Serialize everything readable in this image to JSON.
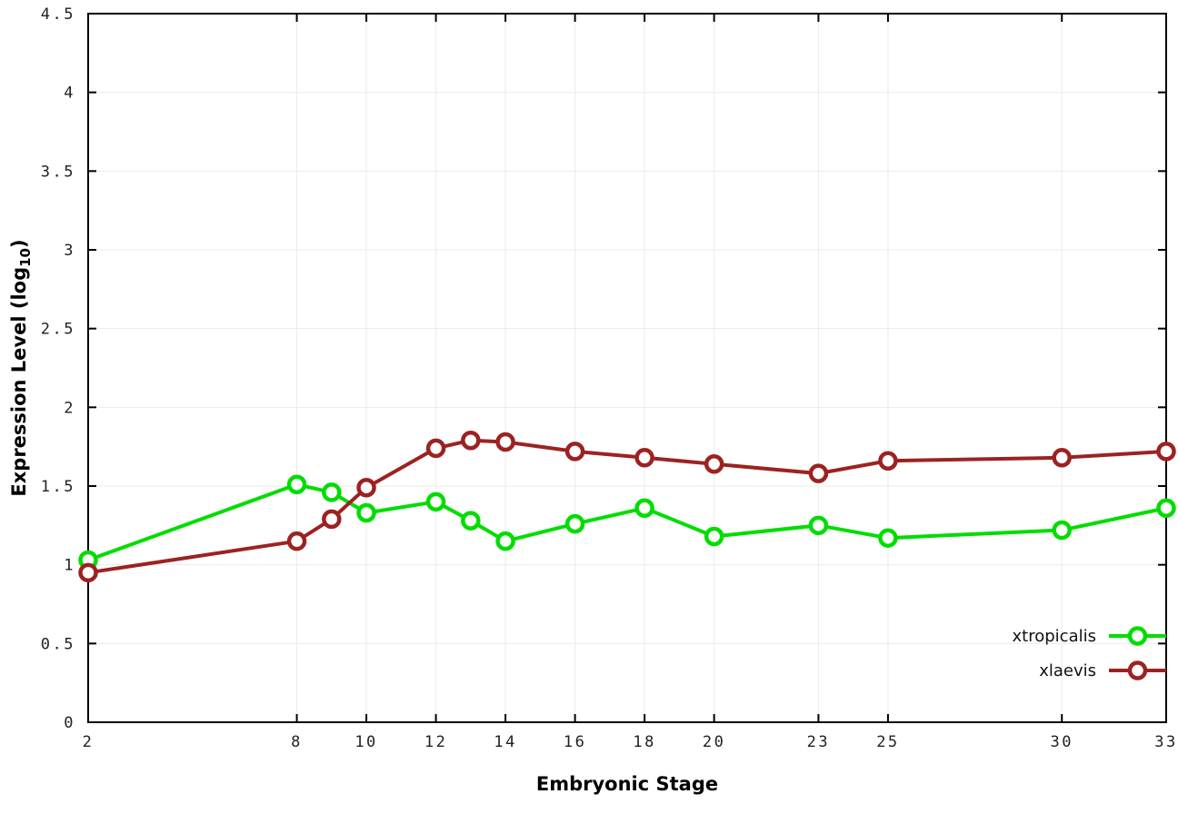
{
  "chart_data": {
    "type": "line",
    "title": "",
    "xlabel": "Embryonic Stage",
    "ylabel": "Expression Level (log10)",
    "xlim": [
      2,
      33
    ],
    "ylim": [
      0,
      4.5
    ],
    "xticks": [
      2,
      8,
      10,
      12,
      14,
      16,
      18,
      20,
      23,
      25,
      30,
      33
    ],
    "yticks": [
      0,
      0.5,
      1,
      1.5,
      2,
      2.5,
      3,
      3.5,
      4,
      4.5
    ],
    "grid": true,
    "grid_color": "#e8ede8",
    "axis_color": "#000000",
    "background_color": "#ffffff",
    "legend_position": "bottom-right",
    "x": [
      2,
      8,
      9,
      10,
      12,
      13,
      14,
      16,
      18,
      20,
      23,
      25,
      30,
      33
    ],
    "series": [
      {
        "name": "xtropicalis",
        "color": "#00dd00",
        "marker": "open-circle",
        "values": [
          1.03,
          1.51,
          1.46,
          1.33,
          1.4,
          1.28,
          1.15,
          1.26,
          1.36,
          1.18,
          1.25,
          1.17,
          1.22,
          1.36
        ]
      },
      {
        "name": "xlaevis",
        "color": "#9c2222",
        "marker": "open-circle",
        "values": [
          0.95,
          1.15,
          1.29,
          1.49,
          1.74,
          1.79,
          1.78,
          1.72,
          1.68,
          1.64,
          1.58,
          1.66,
          1.68,
          1.72
        ]
      }
    ]
  }
}
